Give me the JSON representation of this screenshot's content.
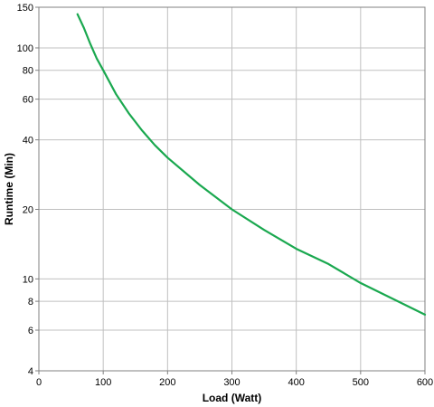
{
  "chart_data": {
    "type": "line",
    "title": "",
    "xlabel": "Load (Watt)",
    "ylabel": "Runtime (Min)",
    "xlim": [
      0,
      600
    ],
    "ylim": [
      4,
      150
    ],
    "y_scale": "log",
    "grid": true,
    "legend": "none",
    "x_ticks": [
      "0",
      "100",
      "200",
      "300",
      "400",
      "500",
      "600"
    ],
    "y_ticks": [
      "4",
      "6",
      "8",
      "10",
      "20",
      "40",
      "60",
      "80",
      "100",
      "150"
    ],
    "series": [
      {
        "color": "#1aa84f",
        "x": [
          60,
          70,
          80,
          90,
          100,
          120,
          140,
          160,
          180,
          200,
          250,
          300,
          350,
          400,
          450,
          500,
          550,
          600
        ],
        "y": [
          140,
          122,
          104,
          90,
          80,
          63,
          52,
          44,
          38,
          33.5,
          25.5,
          20,
          16.3,
          13.5,
          11.6,
          9.6,
          8.2,
          7.0
        ]
      }
    ]
  }
}
